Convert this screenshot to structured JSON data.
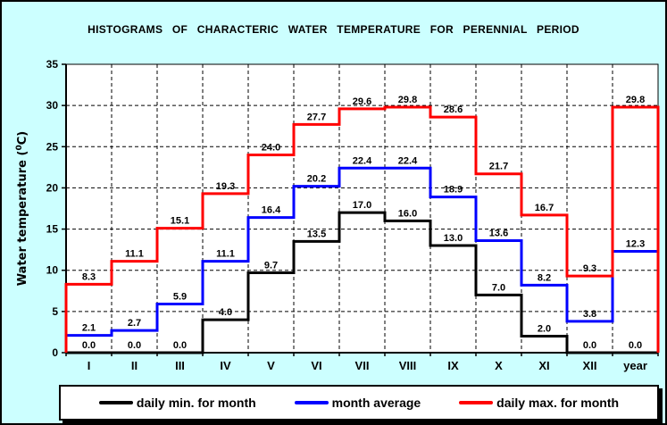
{
  "title": "HISTOGRAMS OF CHARACTERIC WATER TEMPERATURE FOR PERENNIAL PERIOD",
  "colors": {
    "background": "#CCFFFF",
    "plot_background": "#FFFFFF",
    "frame": "#000000",
    "series_min": "#000000",
    "series_avg": "#0000FF",
    "series_max": "#FF0000"
  },
  "legend": [
    {
      "label": "daily min. for month",
      "color": "#000000"
    },
    {
      "label": "month average",
      "color": "#0000FF"
    },
    {
      "label": "daily max. for month",
      "color": "#FF0000"
    }
  ],
  "chart_data": {
    "type": "line",
    "subtype": "step-histogram-outline",
    "title": "HISTOGRAMS OF CHARACTERIC WATER TEMPERATURE FOR PERENNIAL PERIOD",
    "categories": [
      "I",
      "II",
      "III",
      "IV",
      "V",
      "VI",
      "VII",
      "VIII",
      "IX",
      "X",
      "XI",
      "XII",
      "year"
    ],
    "series": [
      {
        "name": "daily min. for month",
        "color": "#000000",
        "values": [
          0.0,
          0.0,
          0.0,
          4.0,
          9.7,
          13.5,
          17.0,
          16.0,
          13.0,
          7.0,
          2.0,
          0.0,
          0.0
        ]
      },
      {
        "name": "month average",
        "color": "#0000FF",
        "values": [
          2.1,
          2.7,
          5.9,
          11.1,
          16.4,
          20.2,
          22.4,
          22.4,
          18.9,
          13.6,
          8.2,
          3.8,
          12.3
        ]
      },
      {
        "name": "daily max. for month",
        "color": "#FF0000",
        "values": [
          8.3,
          11.1,
          15.1,
          19.3,
          24.0,
          27.7,
          29.6,
          29.8,
          28.6,
          21.7,
          16.7,
          9.3,
          29.8
        ]
      }
    ],
    "xlabel": "",
    "ylabel": "Water temperature (⁰C)",
    "ylim": [
      0,
      35
    ],
    "ytick_step": 5,
    "yticks": [
      0,
      5,
      10,
      15,
      20,
      25,
      30,
      35
    ],
    "grid": true,
    "grid_style": "dashed",
    "legend_position": "bottom",
    "value_labels": true,
    "value_label_format": "0.0"
  }
}
